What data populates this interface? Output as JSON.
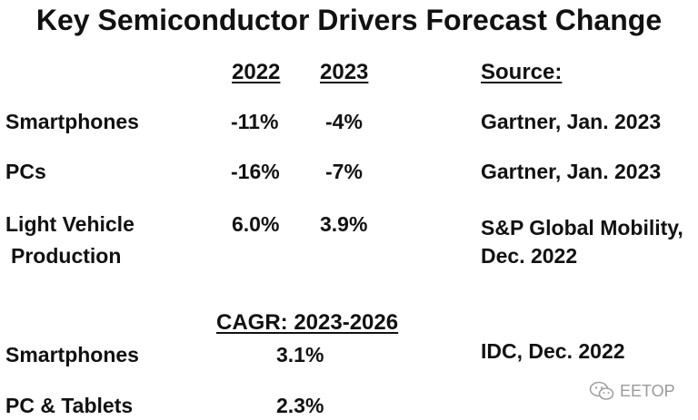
{
  "title": "Key Semiconductor Drivers Forecast Change",
  "headers": {
    "year1": "2022",
    "year2": "2023",
    "source": "Source:"
  },
  "rows": [
    {
      "label": "Smartphones",
      "v2022": "-11%",
      "v2023": "-4%",
      "source": "Gartner, Jan. 2023"
    },
    {
      "label": "PCs",
      "v2022": "-16%",
      "v2023": "-7%",
      "source": "Gartner, Jan. 2023"
    },
    {
      "label_line1": "Light Vehicle",
      "label_line2": "Production",
      "v2022": "6.0%",
      "v2023": "3.9%",
      "source_line1": "S&P Global Mobility,",
      "source_line2": "Dec. 2022"
    }
  ],
  "cagr": {
    "header": "CAGR: 2023-2026",
    "rows": [
      {
        "label": "Smartphones",
        "value": "3.1%",
        "source": "IDC, Dec. 2022"
      },
      {
        "label": "PC & Tablets",
        "value": "2.3%"
      }
    ]
  },
  "watermark": {
    "icon": "wechat-icon",
    "text": "EETOP"
  }
}
